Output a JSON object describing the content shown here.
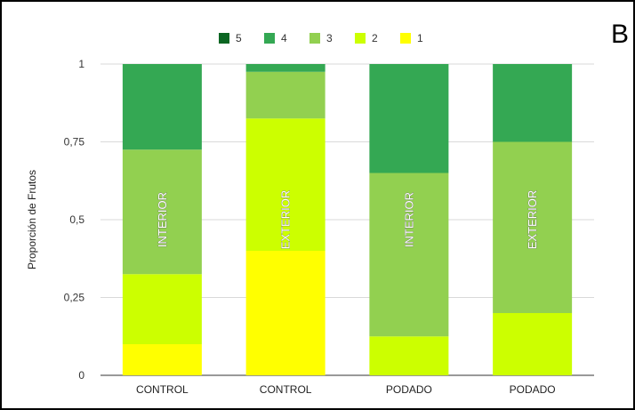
{
  "panel_letter": "B",
  "chart_data": {
    "type": "bar",
    "stacked": true,
    "categories": [
      "CONTROL",
      "CONTROL",
      "PODADO",
      "PODADO"
    ],
    "bar_labels": [
      "INTERIOR",
      "EXTERIOR",
      "INTERIOR",
      "EXTERIOR"
    ],
    "series": [
      {
        "name": "1",
        "color": "#ffff00",
        "values": [
          0.1,
          0.4,
          0.0,
          0.0
        ]
      },
      {
        "name": "2",
        "color": "#ccff00",
        "values": [
          0.225,
          0.425,
          0.125,
          0.2
        ]
      },
      {
        "name": "3",
        "color": "#92d050",
        "values": [
          0.4,
          0.15,
          0.525,
          0.55
        ]
      },
      {
        "name": "4",
        "color": "#34a853",
        "values": [
          0.275,
          0.025,
          0.35,
          0.25
        ]
      },
      {
        "name": "5",
        "color": "#0b6623",
        "values": [
          0,
          0,
          0,
          0
        ]
      }
    ],
    "legend_order": [
      "5",
      "4",
      "3",
      "2",
      "1"
    ],
    "legend_position": "top-center",
    "title": "",
    "xlabel": "",
    "ylabel": "Proporción de Frutos",
    "ylim": [
      0,
      1
    ],
    "yticks": [
      0,
      0.25,
      0.5,
      0.75,
      1
    ],
    "ytick_labels": [
      "0",
      "0,25",
      "0,5",
      "0,75",
      "1"
    ],
    "grid": "horizontal"
  }
}
